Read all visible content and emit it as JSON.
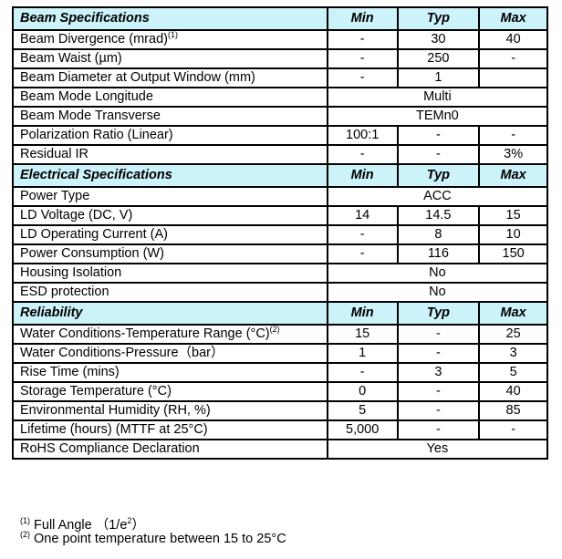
{
  "sections": [
    {
      "title": "Beam Specifications",
      "min": "Min",
      "typ": "Typ",
      "max": "Max",
      "rows": [
        {
          "label": "Beam Divergence (mrad)",
          "sup": "(1)",
          "min": "-",
          "typ": "30",
          "max": "40"
        },
        {
          "label": "Beam Waist (µm)",
          "min": "-",
          "typ": "250",
          "max": "-"
        },
        {
          "label": "Beam Diameter at Output Window (mm)",
          "min": "-",
          "typ": "1",
          "max": ""
        },
        {
          "label": "Beam Mode Longitude",
          "span": "Multi"
        },
        {
          "label": "Beam Mode Transverse",
          "span": "TEMn0"
        },
        {
          "label": "Polarization Ratio (Linear)",
          "min": "100:1",
          "typ": "-",
          "max": "-"
        },
        {
          "label": "Residual IR",
          "min": "-",
          "typ": "-",
          "max": "3%"
        }
      ]
    },
    {
      "title": "Electrical Specifications",
      "min": "Min",
      "typ": "Typ",
      "max": "Max",
      "rows": [
        {
          "label": "Power Type",
          "span": "ACC"
        },
        {
          "label": "LD Voltage  (DC, V)",
          "min": "14",
          "typ": "14.5",
          "max": "15"
        },
        {
          "label": "LD Operating Current (A)",
          "min": "-",
          "typ": "8",
          "max": "10"
        },
        {
          "label": "Power Consumption (W)",
          "min": "-",
          "typ": "116",
          "max": "150"
        },
        {
          "label": "Housing Isolation",
          "span": "No"
        },
        {
          "label": "ESD protection",
          "span": "No"
        }
      ]
    },
    {
      "title": "Reliability",
      "min": "Min",
      "typ": "Typ",
      "max": "Max",
      "rows": [
        {
          "label": "Water Conditions-Temperature Range  (°C)",
          "sup": "(2)",
          "min": "15",
          "typ": "-",
          "max": "25"
        },
        {
          "label": "Water Conditions-Pressure（bar）",
          "min": "1",
          "typ": "-",
          "max": "3"
        },
        {
          "label": "Rise Time (mins)",
          "min": "-",
          "typ": "3",
          "max": "5"
        },
        {
          "label": "Storage Temperature (°C)",
          "min": "0",
          "typ": "-",
          "max": "40"
        },
        {
          "label": "Environmental Humidity (RH, %)",
          "min": "5",
          "typ": "-",
          "max": "85"
        },
        {
          "label": "Lifetime (hours) (MTTF at 25°C)",
          "min": "5,000",
          "typ": "-",
          "max": "-"
        },
        {
          "label": "RoHS Compliance Declaration",
          "span": "Yes"
        }
      ]
    }
  ],
  "footnotes": [
    {
      "mark": "(1)",
      "text": " Full Angle  （1/e",
      "sup": "2",
      "end": "）"
    },
    {
      "mark": "(2)",
      "text": " One point temperature between 15 to 25°C"
    }
  ]
}
